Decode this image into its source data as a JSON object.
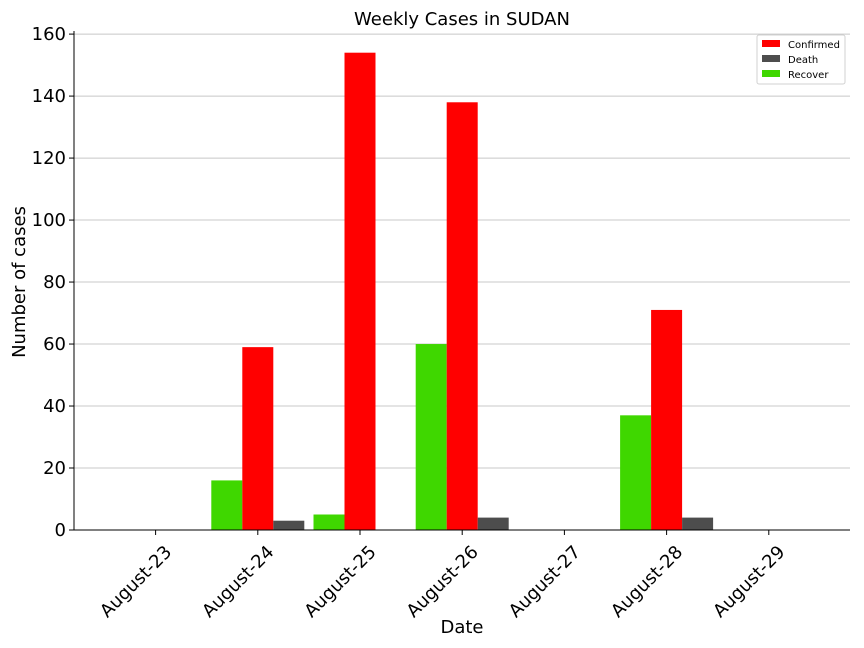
{
  "chart_data": {
    "type": "bar",
    "title": "Weekly Cases in SUDAN",
    "xlabel": "Date",
    "ylabel": "Number of cases",
    "categories": [
      "August-23",
      "August-24",
      "August-25",
      "August-26",
      "August-27",
      "August-28",
      "August-29"
    ],
    "series": [
      {
        "name": "Recover",
        "color": "#3fd700",
        "values": [
          0,
          16,
          5,
          60,
          0,
          37,
          0
        ]
      },
      {
        "name": "Confirmed",
        "color": "#ff0000",
        "values": [
          0,
          59,
          154,
          138,
          0,
          71,
          0
        ]
      },
      {
        "name": "Death",
        "color": "#4d4d4d",
        "values": [
          0,
          3,
          0,
          4,
          0,
          4,
          0
        ]
      }
    ],
    "legend_order": [
      "Confirmed",
      "Death",
      "Recover"
    ],
    "yticks": [
      0,
      20,
      40,
      60,
      80,
      100,
      120,
      140,
      160
    ],
    "ylim": [
      0,
      161
    ],
    "grid": "horizontal",
    "legend_position": "top-right",
    "gridline_color": "#c8c8c8"
  }
}
